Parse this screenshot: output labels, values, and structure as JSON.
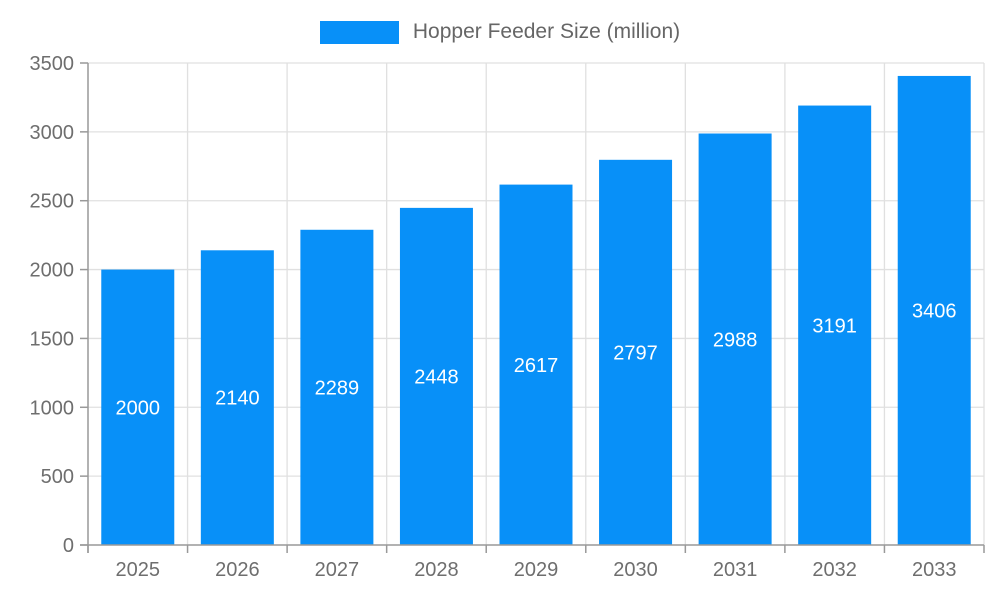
{
  "legend": {
    "label": "Hopper Feeder Size (million)"
  },
  "colors": {
    "bar": "#0890f8",
    "axis_line": "#999999",
    "grid_line": "#e0e0e0",
    "axis_label": "#6e6e6e",
    "legend_text": "#666666",
    "bar_label": "#ffffff",
    "background": "#ffffff"
  },
  "chart_data": {
    "type": "bar",
    "title": "",
    "categories": [
      "2025",
      "2026",
      "2027",
      "2028",
      "2029",
      "2030",
      "2031",
      "2032",
      "2033"
    ],
    "series": [
      {
        "name": "Hopper Feeder Size (million)",
        "values": [
          2000,
          2140,
          2289,
          2448,
          2617,
          2797,
          2988,
          3191,
          3406
        ]
      }
    ],
    "xlabel": "",
    "ylabel": "",
    "ylim": [
      0,
      3500
    ],
    "ytick_step": 500,
    "grid": "both",
    "legend_position": "top-center",
    "value_labels": "inside-middle"
  }
}
